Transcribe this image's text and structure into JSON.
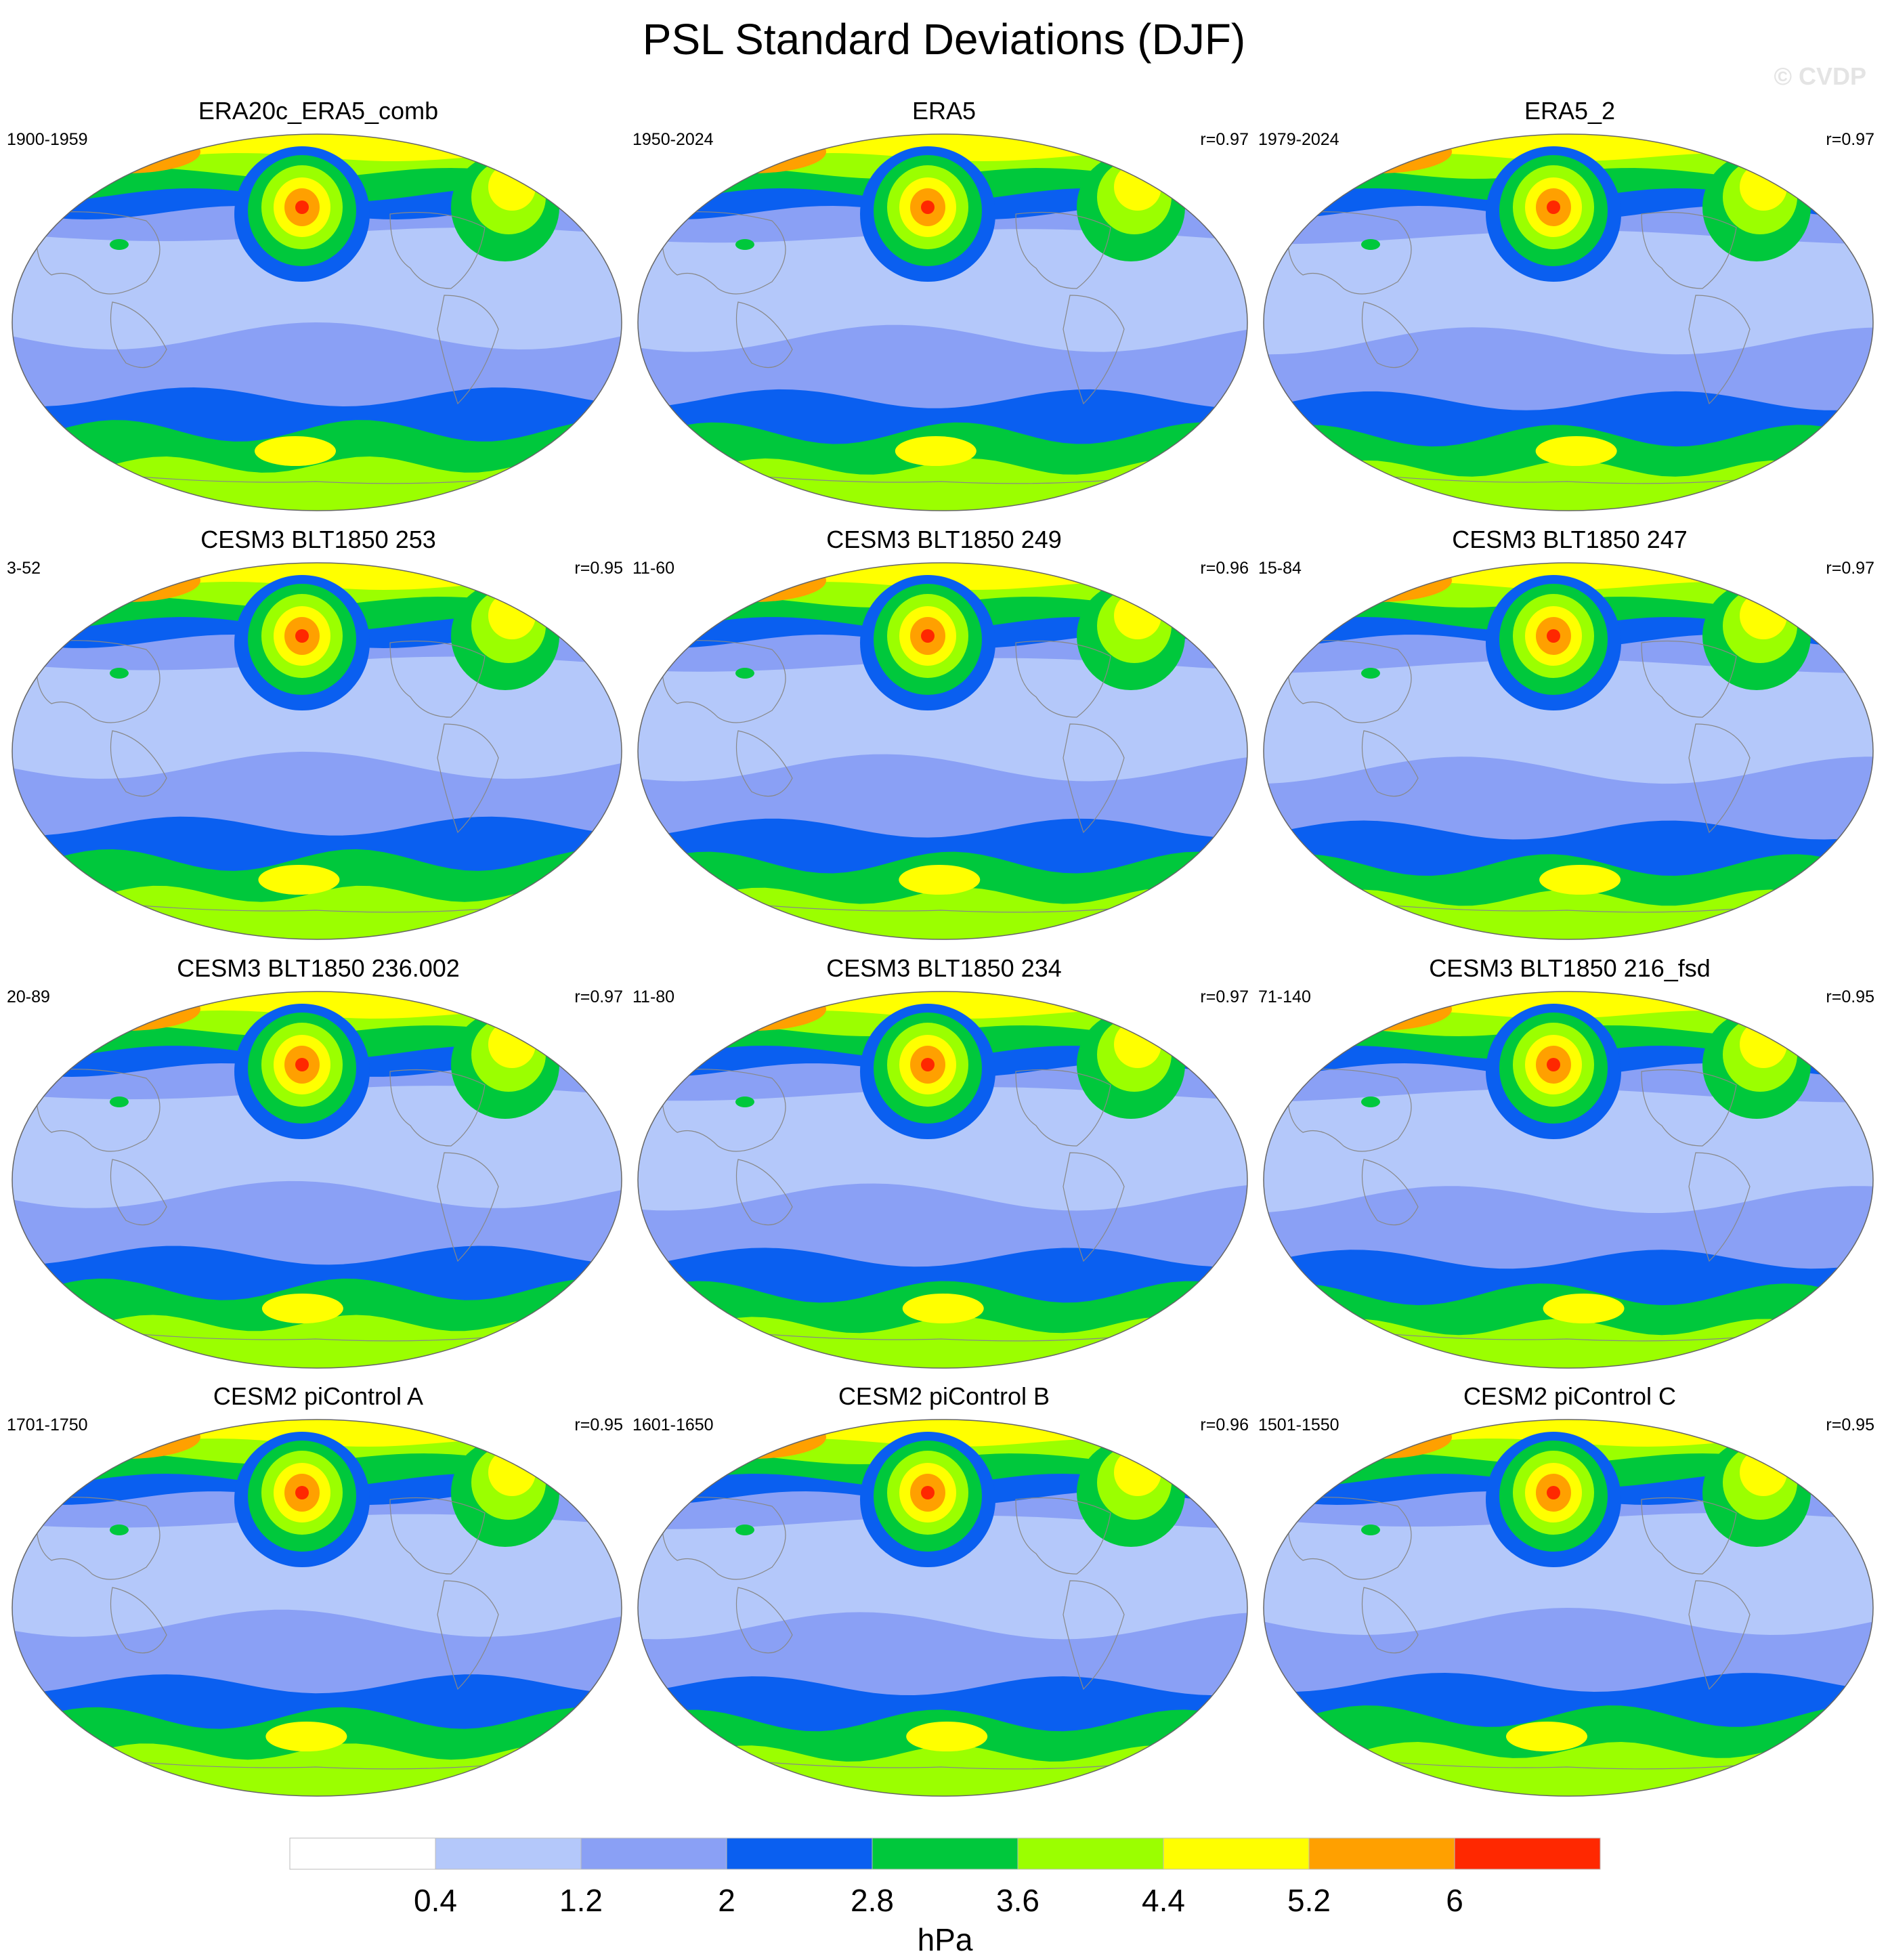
{
  "title": "PSL Standard Deviations (DJF)",
  "watermark": "© CVDP",
  "panels": [
    {
      "title": "ERA20c_ERA5_comb",
      "years": "1900-1959",
      "corr": ""
    },
    {
      "title": "ERA5",
      "years": "1950-2024",
      "corr": "r=0.97"
    },
    {
      "title": "ERA5_2",
      "years": "1979-2024",
      "corr": "r=0.97"
    },
    {
      "title": "CESM3 BLT1850 253",
      "years": "3-52",
      "corr": "r=0.95"
    },
    {
      "title": "CESM3 BLT1850 249",
      "years": "11-60",
      "corr": "r=0.96"
    },
    {
      "title": "CESM3 BLT1850 247",
      "years": "15-84",
      "corr": "r=0.97"
    },
    {
      "title": "CESM3 BLT1850 236.002",
      "years": "20-89",
      "corr": "r=0.97"
    },
    {
      "title": "CESM3 BLT1850 234",
      "years": "11-80",
      "corr": "r=0.97"
    },
    {
      "title": "CESM3 BLT1850 216_fsd",
      "years": "71-140",
      "corr": "r=0.95"
    },
    {
      "title": "CESM2 piControl A",
      "years": "1701-1750",
      "corr": "r=0.95"
    },
    {
      "title": "CESM2 piControl B",
      "years": "1601-1650",
      "corr": "r=0.96"
    },
    {
      "title": "CESM2 piControl C",
      "years": "1501-1550",
      "corr": "r=0.95"
    }
  ],
  "colorbar": {
    "labels": [
      "0.4",
      "1.2",
      "2",
      "2.8",
      "3.6",
      "4.4",
      "5.2",
      "6"
    ],
    "colors": [
      "#ffffff",
      "#b4c8fa",
      "#8aa0f5",
      "#0a5ff0",
      "#00c83c",
      "#9bff00",
      "#ffff00",
      "#ffa000",
      "#ff2800"
    ],
    "unit": "hPa"
  }
}
